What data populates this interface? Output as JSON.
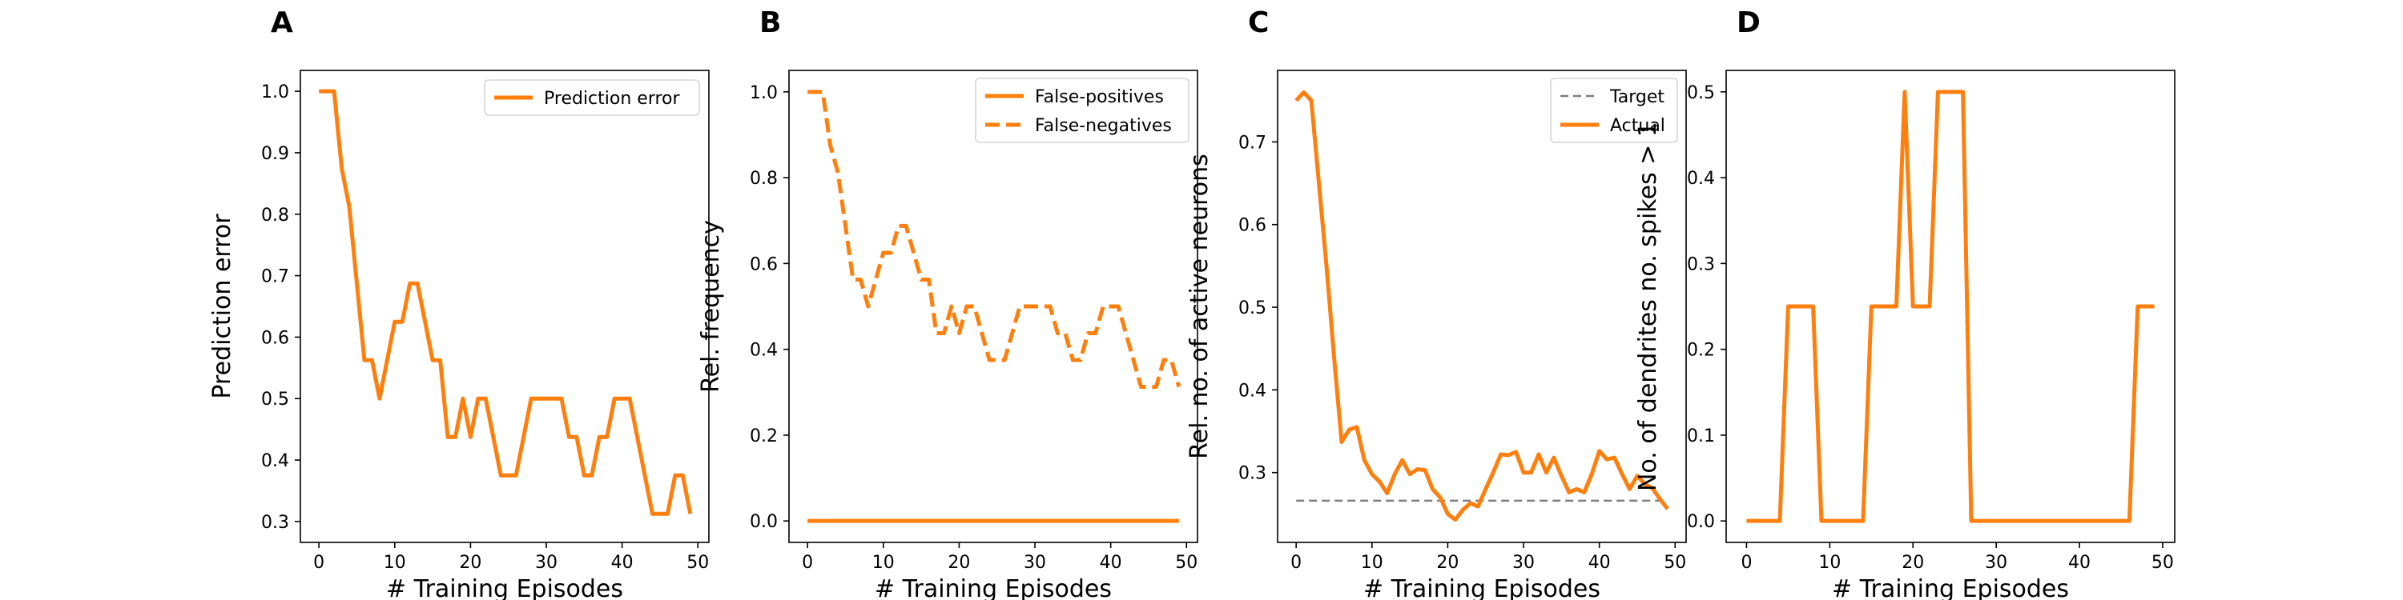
{
  "colors": {
    "series": "#ff7f0e",
    "target": "#7f7f7f"
  },
  "chart_data": [
    {
      "panel": "A",
      "type": "line",
      "xlabel": "# Training Episodes",
      "ylabel": "Prediction error",
      "xlim": [
        -2.45,
        51.45
      ],
      "ylim": [
        0.266,
        1.034
      ],
      "xticks": [
        0,
        10,
        20,
        30,
        40,
        50
      ],
      "yticks": [
        0.3,
        0.4,
        0.5,
        0.6,
        0.7,
        0.8,
        0.9,
        1.0
      ],
      "ytick_labels": [
        "0.3",
        "0.4",
        "0.5",
        "0.6",
        "0.7",
        "0.8",
        "0.9",
        "1.0"
      ],
      "legend_position": "upper-right",
      "series": [
        {
          "name": "Prediction error",
          "style": "solid",
          "x": [
            0,
            1,
            2,
            3,
            4,
            5,
            6,
            7,
            8,
            9,
            10,
            11,
            12,
            13,
            14,
            15,
            16,
            17,
            18,
            19,
            20,
            21,
            22,
            23,
            24,
            25,
            26,
            27,
            28,
            29,
            30,
            31,
            32,
            33,
            34,
            35,
            36,
            37,
            38,
            39,
            40,
            41,
            42,
            43,
            44,
            45,
            46,
            47,
            48,
            49
          ],
          "y": [
            1.0,
            1.0,
            1.0,
            0.875,
            0.8125,
            0.6875,
            0.5625,
            0.5625,
            0.5,
            0.5625,
            0.625,
            0.625,
            0.6875,
            0.6875,
            0.625,
            0.5625,
            0.5625,
            0.4375,
            0.4375,
            0.5,
            0.4375,
            0.5,
            0.5,
            0.4375,
            0.375,
            0.375,
            0.375,
            0.4375,
            0.5,
            0.5,
            0.5,
            0.5,
            0.5,
            0.4375,
            0.4375,
            0.375,
            0.375,
            0.4375,
            0.4375,
            0.5,
            0.5,
            0.5,
            0.4375,
            0.375,
            0.3125,
            0.3125,
            0.3125,
            0.375,
            0.375,
            0.3125
          ]
        }
      ]
    },
    {
      "panel": "B",
      "type": "line",
      "xlabel": "# Training Episodes",
      "ylabel": "Rel. frequency",
      "xlim": [
        -2.45,
        51.45
      ],
      "ylim": [
        -0.05,
        1.05
      ],
      "xticks": [
        0,
        10,
        20,
        30,
        40,
        50
      ],
      "yticks": [
        0.0,
        0.2,
        0.4,
        0.6,
        0.8,
        1.0
      ],
      "ytick_labels": [
        "0.0",
        "0.2",
        "0.4",
        "0.6",
        "0.8",
        "1.0"
      ],
      "legend_position": "upper-right",
      "series": [
        {
          "name": "False-positives",
          "style": "solid",
          "x": [
            0,
            49
          ],
          "y": [
            0.0,
            0.0
          ]
        },
        {
          "name": "False-negatives",
          "style": "dashed",
          "x": [
            0,
            1,
            2,
            3,
            4,
            5,
            6,
            7,
            8,
            9,
            10,
            11,
            12,
            13,
            14,
            15,
            16,
            17,
            18,
            19,
            20,
            21,
            22,
            23,
            24,
            25,
            26,
            27,
            28,
            29,
            30,
            31,
            32,
            33,
            34,
            35,
            36,
            37,
            38,
            39,
            40,
            41,
            42,
            43,
            44,
            45,
            46,
            47,
            48,
            49
          ],
          "y": [
            1.0,
            1.0,
            1.0,
            0.875,
            0.8125,
            0.6875,
            0.5625,
            0.5625,
            0.5,
            0.5625,
            0.625,
            0.625,
            0.6875,
            0.6875,
            0.625,
            0.5625,
            0.5625,
            0.4375,
            0.4375,
            0.5,
            0.4375,
            0.5,
            0.5,
            0.4375,
            0.375,
            0.375,
            0.375,
            0.4375,
            0.5,
            0.5,
            0.5,
            0.5,
            0.5,
            0.4375,
            0.4375,
            0.375,
            0.375,
            0.4375,
            0.4375,
            0.5,
            0.5,
            0.5,
            0.4375,
            0.375,
            0.3125,
            0.3125,
            0.3125,
            0.375,
            0.375,
            0.3125
          ]
        }
      ]
    },
    {
      "panel": "C",
      "type": "line",
      "xlabel": "# Training Episodes",
      "ylabel": "Rel. no. of active neurons",
      "xlim": [
        -2.45,
        51.45
      ],
      "ylim": [
        0.2155,
        0.7865
      ],
      "xticks": [
        0,
        10,
        20,
        30,
        40,
        50
      ],
      "yticks": [
        0.3,
        0.4,
        0.5,
        0.6,
        0.7
      ],
      "ytick_labels": [
        "0.3",
        "0.4",
        "0.5",
        "0.6",
        "0.7"
      ],
      "legend_position": "upper-right",
      "series": [
        {
          "name": "Target",
          "style": "dashed-thin",
          "x": [
            0,
            49
          ],
          "y": [
            0.266,
            0.266
          ]
        },
        {
          "name": "Actual",
          "style": "solid",
          "x": [
            0,
            1,
            2,
            3,
            4,
            5,
            6,
            7,
            8,
            9,
            10,
            11,
            12,
            13,
            14,
            15,
            16,
            17,
            18,
            19,
            20,
            21,
            22,
            23,
            24,
            25,
            26,
            27,
            28,
            29,
            30,
            31,
            32,
            33,
            34,
            35,
            36,
            37,
            38,
            39,
            40,
            41,
            42,
            43,
            44,
            45,
            46,
            47,
            48,
            49
          ],
          "y": [
            0.75,
            0.76,
            0.75,
            0.65,
            0.55,
            0.44,
            0.337,
            0.352,
            0.355,
            0.315,
            0.298,
            0.289,
            0.275,
            0.298,
            0.315,
            0.298,
            0.304,
            0.303,
            0.28,
            0.27,
            0.25,
            0.243,
            0.255,
            0.263,
            0.259,
            0.28,
            0.3,
            0.322,
            0.321,
            0.325,
            0.3,
            0.3,
            0.322,
            0.3,
            0.318,
            0.296,
            0.276,
            0.28,
            0.276,
            0.298,
            0.326,
            0.316,
            0.318,
            0.298,
            0.28,
            0.296,
            0.286,
            0.281,
            0.268,
            0.256
          ]
        }
      ]
    },
    {
      "panel": "D",
      "type": "line",
      "xlabel": "# Training Episodes",
      "ylabel": "No. of dendrites no. spikes > 1",
      "xlim": [
        -2.45,
        51.45
      ],
      "ylim": [
        -0.025,
        0.525
      ],
      "xticks": [
        0,
        10,
        20,
        30,
        40,
        50
      ],
      "yticks": [
        0.0,
        0.1,
        0.2,
        0.3,
        0.4,
        0.5
      ],
      "ytick_labels": [
        "0.0",
        "0.1",
        "0.2",
        "0.3",
        "0.4",
        "0.5"
      ],
      "series": [
        {
          "style": "solid",
          "x": [
            0,
            1,
            2,
            3,
            4,
            5,
            6,
            7,
            8,
            9,
            10,
            11,
            12,
            13,
            14,
            15,
            16,
            17,
            18,
            19,
            20,
            21,
            22,
            23,
            24,
            25,
            26,
            27,
            28,
            29,
            30,
            31,
            32,
            33,
            34,
            35,
            36,
            37,
            38,
            39,
            40,
            41,
            42,
            43,
            44,
            45,
            46,
            47,
            48,
            49
          ],
          "y": [
            0,
            0,
            0,
            0,
            0,
            0.25,
            0.25,
            0.25,
            0.25,
            0,
            0,
            0,
            0,
            0,
            0,
            0.25,
            0.25,
            0.25,
            0.25,
            0.5,
            0.25,
            0.25,
            0.25,
            0.5,
            0.5,
            0.5,
            0.5,
            0,
            0,
            0,
            0,
            0,
            0,
            0,
            0,
            0,
            0,
            0,
            0,
            0,
            0,
            0,
            0,
            0,
            0,
            0,
            0,
            0.25,
            0.25,
            0.25
          ]
        }
      ]
    }
  ]
}
